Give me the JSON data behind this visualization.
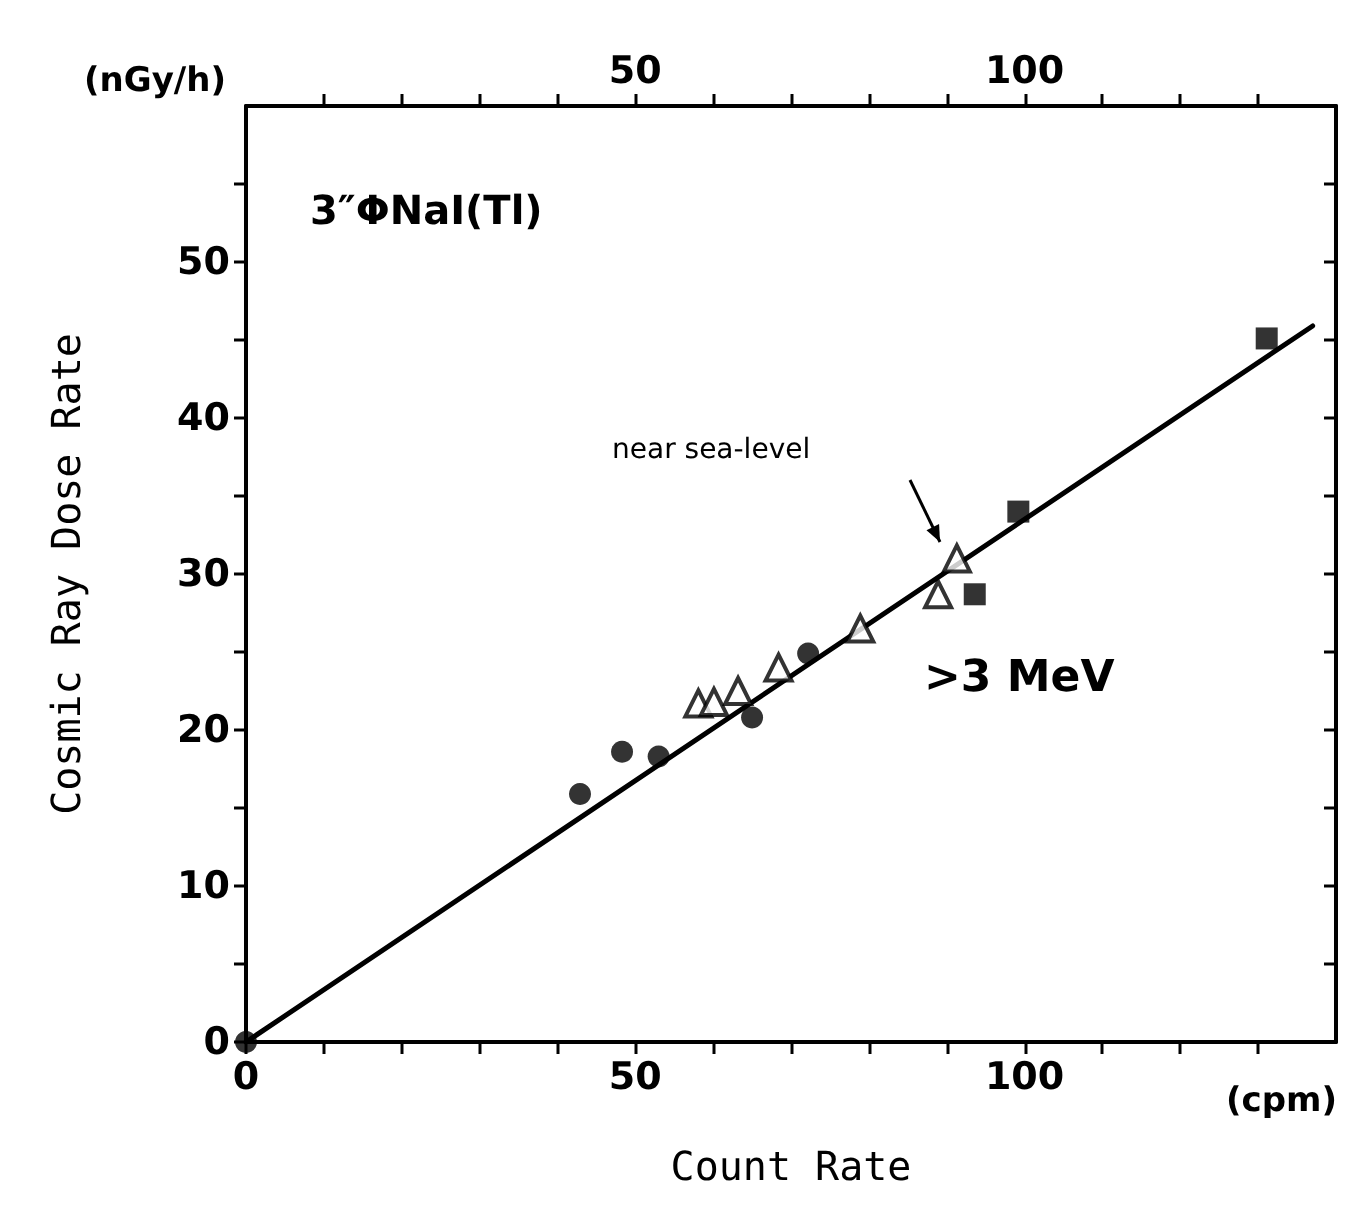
{
  "chart_data": {
    "type": "scatter",
    "xlabel": "Count Rate",
    "ylabel": "Cosmic Ray Dose Rate",
    "x2label": "(nGy/h)",
    "xlim": [
      0,
      140
    ],
    "ylim": [
      0,
      60
    ],
    "x2lim": [
      0,
      140
    ],
    "xticks": [
      0,
      {
        "value": 10,
        "label": null
      },
      {
        "value": 20,
        "label": null
      },
      {
        "value": 30,
        "label": null
      },
      {
        "value": 40,
        "label": null
      },
      50,
      {
        "value": 60,
        "label": null
      },
      {
        "value": 70,
        "label": null
      },
      {
        "value": 80,
        "label": null
      },
      {
        "value": 90,
        "label": null
      },
      100,
      {
        "value": 110,
        "label": null
      },
      {
        "value": 120,
        "label": null
      },
      {
        "value": 130,
        "label": null
      }
    ],
    "x2ticks": [
      {
        "value": 10,
        "label": null
      },
      {
        "value": 20,
        "label": null
      },
      {
        "value": 30,
        "label": null
      },
      {
        "value": 40,
        "label": null
      },
      50,
      {
        "value": 60,
        "label": null
      },
      {
        "value": 70,
        "label": null
      },
      {
        "value": 80,
        "label": null
      },
      {
        "value": 90,
        "label": null
      },
      100,
      {
        "value": 110,
        "label": null
      },
      {
        "value": 120,
        "label": null
      },
      {
        "value": 130,
        "label": null
      }
    ],
    "yticks": [
      0,
      {
        "value": 5,
        "label": null
      },
      10,
      {
        "value": 15,
        "label": null
      },
      20,
      {
        "value": 25,
        "label": null
      },
      30,
      {
        "value": 35,
        "label": null
      },
      40,
      {
        "value": 45,
        "label": null
      },
      50,
      {
        "value": 55,
        "label": null
      }
    ],
    "grid": false,
    "series": [
      {
        "type": "scatter",
        "marker": "circle",
        "color": "#000000",
        "x": [
          0,
          42.9,
          48.3,
          53.0,
          65.0,
          72.2
        ],
        "values": [
          0,
          15.9,
          18.6,
          18.3,
          20.8,
          24.9
        ]
      },
      {
        "type": "scatter",
        "marker": "triangle",
        "color": "#000000",
        "x": [
          58.1,
          60.1,
          63.2,
          68.4,
          78.9,
          88.9,
          91.3
        ],
        "values": [
          21.7,
          21.8,
          22.5,
          24.0,
          26.5,
          28.7,
          31.0
        ]
      },
      {
        "type": "scatter",
        "marker": "square",
        "color": "#000000",
        "x": [
          93.6,
          99.2,
          131.1
        ],
        "values": [
          28.7,
          34.0,
          45.1
        ]
      },
      {
        "type": "line",
        "marker": "none",
        "line_style": "solid",
        "color": "#000000",
        "x": [
          0,
          137
        ],
        "values": [
          0,
          45.9
        ]
      }
    ],
    "annotations": [
      "3″ΦNaI(Tl)",
      ">3 MeV",
      "(cpm)",
      "near sea-level"
    ]
  }
}
